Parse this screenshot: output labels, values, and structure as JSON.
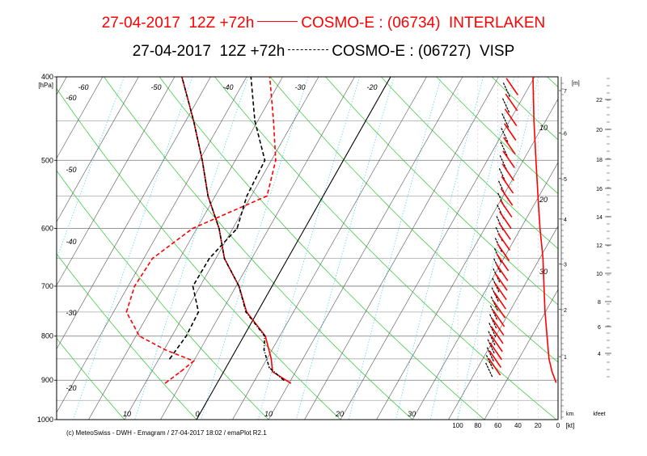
{
  "titles": [
    {
      "date": "27-04-2017",
      "run": "12Z +72h",
      "model": "COSMO-E : (06734)",
      "station": "INTERLAKEN",
      "color": "#ff0000",
      "style": "solid"
    },
    {
      "date": "27-04-2017",
      "run": "12Z +72h",
      "model": "COSMO-E : (06727)",
      "station": "VISP",
      "color": "#000000",
      "style": "dashdot"
    }
  ],
  "footer": "(c) MeteoSwiss - DWH - Emagram / 27-04-2017  18:02 / emaPlot R2.1",
  "chart_data": {
    "type": "line",
    "diagram": "emagram",
    "yunit": "[hPa]",
    "pressure_ticks": [
      400,
      500,
      600,
      700,
      800,
      900,
      1000
    ],
    "temperature_ticks_bottom": [
      -20,
      10,
      0,
      10,
      20,
      30
    ],
    "temperature_ticks_left": [
      -60,
      -50,
      -40,
      -30,
      -20
    ],
    "temperature_ticks_top": [
      -60,
      -50,
      -40,
      -30,
      -20
    ],
    "inner_labels": [
      "10",
      "20",
      "30"
    ],
    "km_label": "[m]",
    "km_ticks": [
      "7",
      "6",
      "5",
      "4",
      "3",
      "2",
      "1"
    ],
    "kfeet_ticks": [
      "22",
      "20",
      "18",
      "16",
      "14",
      "12",
      "10",
      "8",
      "6",
      "4"
    ],
    "km_axis_label": "km",
    "kfeet_axis_label": "kfeet",
    "wind_ticks": [
      "100",
      "80",
      "60",
      "40",
      "20",
      "0"
    ],
    "wind_unit": "[kt]",
    "series": [
      {
        "name": "INTERLAKEN T",
        "color": "#ff0000",
        "dash": "none",
        "points": [
          [
            907,
            10.2
          ],
          [
            880,
            6.8
          ],
          [
            850,
            5.6
          ],
          [
            800,
            3.0
          ],
          [
            750,
            -1.5
          ],
          [
            700,
            -4.6
          ],
          [
            650,
            -8.8
          ],
          [
            600,
            -11.9
          ],
          [
            550,
            -16.0
          ],
          [
            500,
            -19.6
          ],
          [
            450,
            -23.9
          ],
          [
            400,
            -29.0
          ]
        ]
      },
      {
        "name": "INTERLAKEN Td",
        "color": "#ff0000",
        "dash": "5,3",
        "points": [
          [
            907,
            -7.2
          ],
          [
            880,
            -6.0
          ],
          [
            855,
            -5.0
          ],
          [
            830,
            -9.8
          ],
          [
            800,
            -14.5
          ],
          [
            750,
            -18.2
          ],
          [
            700,
            -19.1
          ],
          [
            650,
            -18.8
          ],
          [
            600,
            -15.6
          ],
          [
            550,
            -7.8
          ],
          [
            500,
            -9.4
          ],
          [
            450,
            -12.8
          ],
          [
            400,
            -16.8
          ]
        ]
      },
      {
        "name": "VISP T",
        "color": "#000000",
        "dash": "4,2,1,2",
        "points": [
          [
            900,
            9.0
          ],
          [
            870,
            6.0
          ],
          [
            830,
            3.9
          ],
          [
            800,
            2.9
          ],
          [
            750,
            -1.6
          ],
          [
            700,
            -4.6
          ],
          [
            650,
            -8.8
          ],
          [
            600,
            -11.9
          ],
          [
            550,
            -16.0
          ],
          [
            500,
            -19.6
          ],
          [
            450,
            -23.9
          ],
          [
            400,
            -29.0
          ]
        ]
      },
      {
        "name": "VISP Td",
        "color": "#000000",
        "dash": "5,3",
        "points": [
          [
            850,
            -8.5
          ],
          [
            800,
            -8.0
          ],
          [
            750,
            -8.2
          ],
          [
            700,
            -11.0
          ],
          [
            650,
            -10.9
          ],
          [
            600,
            -9.4
          ],
          [
            550,
            -10.6
          ],
          [
            500,
            -10.9
          ],
          [
            450,
            -15.4
          ],
          [
            400,
            -19.4
          ]
        ]
      },
      {
        "name": "INTERLAKEN wind profile",
        "color": "#ff0000",
        "dash": "none",
        "coord": "wind_kt",
        "points": [
          [
            905,
            2
          ],
          [
            880,
            6
          ],
          [
            850,
            9
          ],
          [
            800,
            11
          ],
          [
            750,
            13
          ],
          [
            700,
            14
          ],
          [
            650,
            15
          ],
          [
            600,
            18
          ],
          [
            550,
            20
          ],
          [
            500,
            22
          ],
          [
            450,
            24
          ],
          [
            400,
            25
          ]
        ]
      }
    ]
  }
}
